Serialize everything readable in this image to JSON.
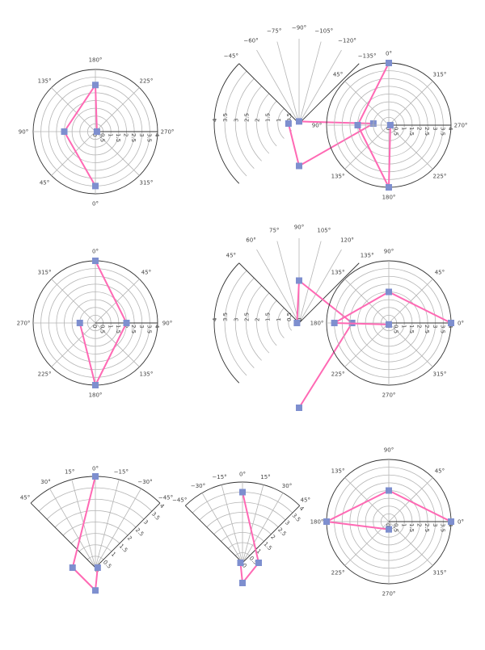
{
  "colors": {
    "line": "#ff69b4",
    "marker": "#7e8fcf",
    "grid": "#b4b4b4",
    "frame": "#333333"
  },
  "chart_data": [
    {
      "type": "line",
      "projection": "polar",
      "rlim": [
        0,
        4
      ],
      "rticks": [
        "0",
        "0.5",
        "1",
        "1.5",
        "2",
        "2.5",
        "3",
        "3.5",
        "4"
      ],
      "theta_ticks": [
        "0°",
        "45°",
        "90°",
        "135°",
        "180°",
        "225°",
        "270°",
        "315°"
      ],
      "series": [
        {
          "theta": [
            0,
            90,
            180,
            270
          ],
          "r": [
            3.5,
            2.0,
            3.0,
            0.1
          ]
        }
      ]
    },
    {
      "type": "line",
      "projection": "polar",
      "rlim": [
        0,
        4
      ],
      "rticks": [
        "0",
        "0.5",
        "1",
        "1.5",
        "2",
        "2.5",
        "3",
        "3.5",
        "4"
      ],
      "theta_ticks": [
        "−45°",
        "−60°",
        "−75°",
        "−90°",
        "−105°",
        "−120°",
        "−135°"
      ],
      "series": [
        {
          "theta": [
            0,
            90,
            180,
            270
          ],
          "r": [
            0.5,
            2.0,
            3.5,
            0.1
          ]
        }
      ]
    },
    {
      "type": "line",
      "projection": "polar",
      "rlim": [
        0,
        4
      ],
      "rticks": [
        "0",
        "0.5",
        "1",
        "1.5",
        "2",
        "2.5",
        "3",
        "3.5",
        "4"
      ],
      "theta_ticks": [
        "0°",
        "45°",
        "90°",
        "135°",
        "180°",
        "225°",
        "270°",
        "315°"
      ],
      "series": [
        {
          "theta": [
            0,
            90,
            180,
            270
          ],
          "r": [
            4.0,
            2.0,
            4.0,
            0.1
          ]
        }
      ]
    },
    {
      "type": "line",
      "projection": "polar",
      "rlim": [
        0,
        4
      ],
      "rticks": [
        "0",
        "0.5",
        "1",
        "1.5",
        "2",
        "2.5",
        "3",
        "3.5",
        "4"
      ],
      "theta_ticks": [
        "0°",
        "45°",
        "90°",
        "135°",
        "180°",
        "225°",
        "270°",
        "315°"
      ],
      "series": [
        {
          "theta": [
            0,
            90,
            180,
            270
          ],
          "r": [
            4.0,
            2.0,
            4.0,
            1.0
          ]
        }
      ]
    },
    {
      "type": "line",
      "projection": "polar",
      "rlim": [
        0,
        4
      ],
      "rticks": [
        "0",
        "0.5",
        "1",
        "1.5",
        "2",
        "2.5",
        "3",
        "3.5",
        "4"
      ],
      "theta_ticks": [
        "45°",
        "60°",
        "75°",
        "90°",
        "105°",
        "120°",
        "135°"
      ],
      "series": [
        {
          "theta": [
            0,
            90,
            180,
            270
          ],
          "r": [
            0.1,
            2.0,
            2.5,
            4.0
          ]
        }
      ]
    },
    {
      "type": "line",
      "projection": "polar",
      "rlim": [
        0,
        4
      ],
      "rticks": [
        "0",
        "0.5",
        "1",
        "1.5",
        "2",
        "2.5",
        "3",
        "3.5",
        "4"
      ],
      "theta_ticks": [
        "0°",
        "45°",
        "90°",
        "135°",
        "180°",
        "225°",
        "270°",
        "315°"
      ],
      "series": [
        {
          "theta": [
            0,
            90,
            180,
            270
          ],
          "r": [
            4.0,
            2.0,
            3.5,
            0.1
          ]
        }
      ]
    },
    {
      "type": "line",
      "projection": "polar",
      "rlim": [
        0,
        4
      ],
      "rticks": [
        "0",
        "0.5",
        "1",
        "1.5",
        "2",
        "2.5",
        "3",
        "3.5",
        "4"
      ],
      "theta_ticks": [
        "−45°",
        "−30°",
        "−15°",
        "0°",
        "15°",
        "30°",
        "45°"
      ],
      "series": [
        {
          "theta": [
            0,
            90,
            180,
            270
          ],
          "r": [
            4.0,
            1.0,
            1.0,
            0.1
          ]
        }
      ]
    },
    {
      "type": "line",
      "projection": "polar",
      "rlim": [
        0,
        4
      ],
      "rticks": [
        "0",
        "0.5",
        "1",
        "1.5",
        "2",
        "2.5",
        "3",
        "3.5",
        "4"
      ],
      "theta_ticks": [
        "45°",
        "30°",
        "15°",
        "0°",
        "−15°",
        "−30°",
        "−45°"
      ],
      "series": [
        {
          "theta": [
            0,
            90,
            180,
            270
          ],
          "r": [
            3.5,
            0.8,
            1.0,
            0.1
          ]
        }
      ]
    },
    {
      "type": "line",
      "projection": "polar",
      "rlim": [
        0,
        4
      ],
      "rticks": [
        "0",
        "0.5",
        "1",
        "1.5",
        "2",
        "2.5",
        "3",
        "3.5",
        "4"
      ],
      "theta_ticks": [
        "0°",
        "45°",
        "90°",
        "135°",
        "180°",
        "225°",
        "270°",
        "315°"
      ],
      "series": [
        {
          "theta": [
            0,
            90,
            180,
            270
          ],
          "r": [
            4.0,
            2.0,
            4.0,
            0.5
          ]
        }
      ]
    }
  ]
}
